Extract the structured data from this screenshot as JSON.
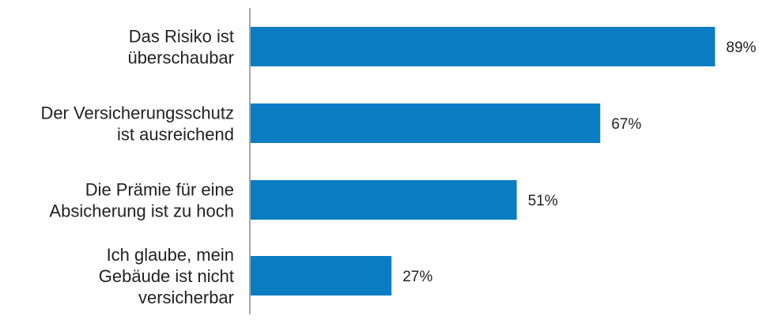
{
  "chart_data": {
    "type": "bar",
    "orientation": "horizontal",
    "categories": [
      [
        "Das Risiko ist",
        "überschaubar"
      ],
      [
        "Der Versicherungsschutz",
        "ist ausreichend"
      ],
      [
        "Die Prämie für eine",
        "Absicherung ist zu hoch"
      ],
      [
        "Ich glaube, mein",
        "Gebäude ist nicht",
        "versicherbar"
      ]
    ],
    "values": [
      89,
      67,
      51,
      27
    ],
    "value_labels": [
      "89%",
      "67%",
      "51%",
      "27%"
    ],
    "title": "",
    "xlabel": "",
    "ylabel": "",
    "xlim": [
      0,
      100
    ],
    "grid": false,
    "legend": "none",
    "bar_color": "#0A7CC4",
    "axis_color": "#888888",
    "text_color": "#222222"
  }
}
